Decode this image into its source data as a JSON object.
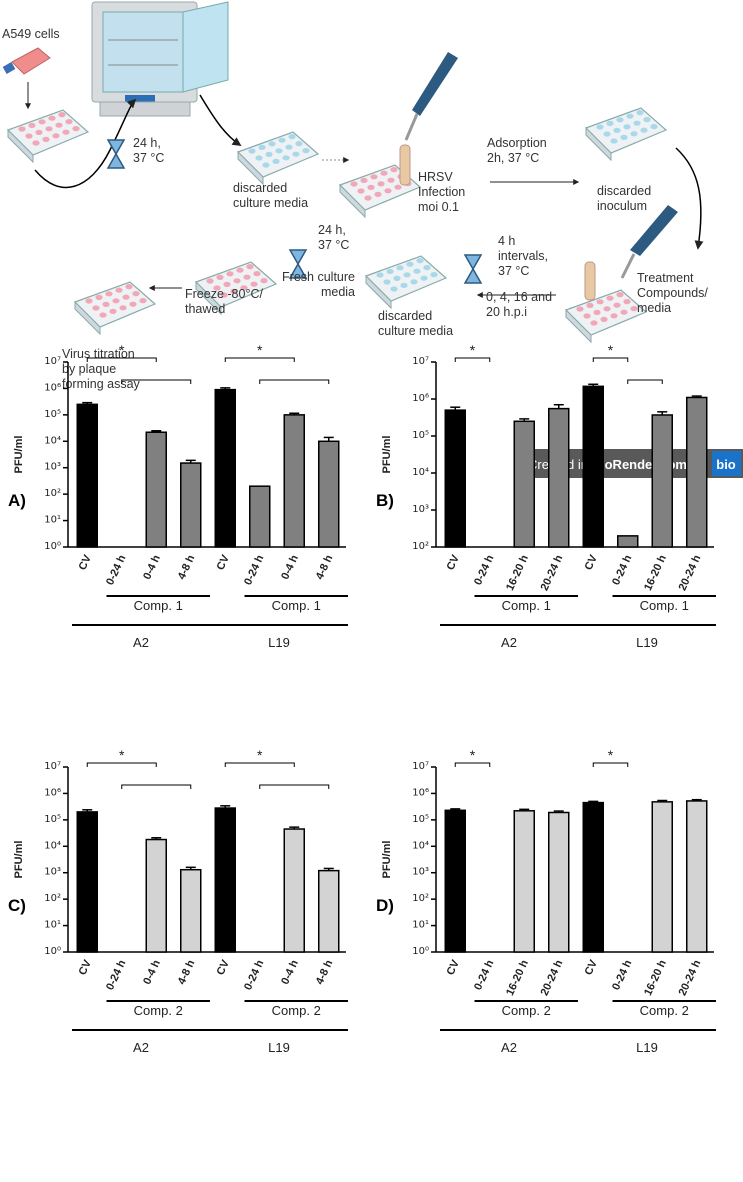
{
  "diagram": {
    "labels": [
      {
        "lines": [
          "A549 cells"
        ]
      },
      {
        "lines": [
          "24 h,",
          "37 °C"
        ]
      },
      {
        "lines": [
          "discarded",
          "culture media"
        ]
      },
      {
        "lines": [
          "HRSV",
          "Infection",
          "moi 0.1"
        ]
      },
      {
        "lines": [
          "Adsorption",
          "2h, 37 °C"
        ]
      },
      {
        "lines": [
          "discarded",
          "inoculum"
        ]
      },
      {
        "lines": [
          "Treatment",
          "Compounds/",
          "media"
        ]
      },
      {
        "lines": [
          "4 h",
          "intervals,",
          "37 °C"
        ]
      },
      {
        "lines": [
          "0, 4, 16 and",
          "20 h.p.i"
        ]
      },
      {
        "lines": [
          "discarded",
          "culture media"
        ]
      },
      {
        "lines": [
          "24 h,",
          "37 °C"
        ]
      },
      {
        "lines": [
          "Fresh culture",
          "media"
        ]
      },
      {
        "lines": [
          "Freeze -80°C/",
          "thawed"
        ]
      },
      {
        "lines": [
          "Virus titration",
          "by plaque",
          "forming assay"
        ]
      }
    ],
    "badge": {
      "text": "Created in",
      "brand": "BioRender.com",
      "logo": "bio"
    }
  },
  "chart_data": [
    {
      "type": "bar",
      "title": "A)",
      "y_label": "PFU/ml",
      "log_scale": true,
      "ylim": [
        1,
        10000000
      ],
      "yticks": [
        {
          "value": 1,
          "label": "10⁰"
        },
        {
          "value": 10,
          "label": "10¹"
        },
        {
          "value": 100,
          "label": "10²"
        },
        {
          "value": 1000,
          "label": "10³"
        },
        {
          "value": 10000,
          "label": "10⁴"
        },
        {
          "value": 100000,
          "label": "10⁵"
        },
        {
          "value": 1000000,
          "label": "10⁶"
        },
        {
          "value": 10000000,
          "label": "10⁷"
        }
      ],
      "categories": [
        "CV",
        "0-24 h",
        "0-4 h",
        "4-8 h",
        "CV",
        "0-24 h",
        "0-4 h",
        "4-8 h"
      ],
      "values": [
        250000,
        null,
        22000,
        1500,
        900000,
        200,
        100000,
        10000
      ],
      "errors": [
        40000,
        null,
        3000,
        400,
        150000,
        null,
        15000,
        4000
      ],
      "colors": [
        "#000000",
        "#808080",
        "#808080",
        "#808080",
        "#000000",
        "#808080",
        "#808080",
        "#808080"
      ],
      "subgroups": [
        {
          "label": "Comp. 1",
          "from": 1,
          "to": 3
        },
        {
          "label": "Comp. 1",
          "from": 5,
          "to": 7
        }
      ],
      "groups": [
        {
          "label": "A2",
          "from": 0,
          "to": 3
        },
        {
          "label": "L19",
          "from": 4,
          "to": 7
        }
      ],
      "brackets": [
        {
          "from": 0,
          "to": 2,
          "label": "*"
        },
        {
          "from": 1,
          "to": 3
        },
        {
          "from": 4,
          "to": 6,
          "label": "*"
        },
        {
          "from": 5,
          "to": 7
        }
      ]
    },
    {
      "type": "bar",
      "title": "B)",
      "y_label": "PFU/ml",
      "log_scale": true,
      "ylim": [
        100,
        10000000
      ],
      "yticks": [
        {
          "value": 100,
          "label": "10²"
        },
        {
          "value": 1000,
          "label": "10³"
        },
        {
          "value": 10000,
          "label": "10⁴"
        },
        {
          "value": 100000,
          "label": "10⁵"
        },
        {
          "value": 1000000,
          "label": "10⁶"
        },
        {
          "value": 10000000,
          "label": "10⁷"
        }
      ],
      "categories": [
        "CV",
        "0-24 h",
        "16-20 h",
        "20-24 h",
        "CV",
        "0-24 h",
        "16-20 h",
        "20-24 h"
      ],
      "values": [
        500000,
        null,
        250000,
        550000,
        2200000,
        200,
        370000,
        1100000
      ],
      "errors": [
        100000,
        null,
        40000,
        150000,
        300000,
        null,
        80000,
        100000
      ],
      "colors": [
        "#000000",
        "#808080",
        "#808080",
        "#808080",
        "#000000",
        "#808080",
        "#808080",
        "#808080"
      ],
      "subgroups": [
        {
          "label": "Comp. 1",
          "from": 1,
          "to": 3
        },
        {
          "label": "Comp. 1",
          "from": 5,
          "to": 7
        }
      ],
      "groups": [
        {
          "label": "A2",
          "from": 0,
          "to": 3
        },
        {
          "label": "L19",
          "from": 4,
          "to": 7
        }
      ],
      "brackets": [
        {
          "from": 0,
          "to": 1,
          "label": "*"
        },
        {
          "from": 4,
          "to": 5,
          "label": "*"
        },
        {
          "from": 5,
          "to": 6
        }
      ]
    },
    {
      "type": "bar",
      "title": "C)",
      "y_label": "PFU/ml",
      "log_scale": true,
      "ylim": [
        1,
        10000000
      ],
      "yticks": [
        {
          "value": 1,
          "label": "10⁰"
        },
        {
          "value": 10,
          "label": "10¹"
        },
        {
          "value": 100,
          "label": "10²"
        },
        {
          "value": 1000,
          "label": "10³"
        },
        {
          "value": 10000,
          "label": "10⁴"
        },
        {
          "value": 100000,
          "label": "10⁵"
        },
        {
          "value": 1000000,
          "label": "10⁶"
        },
        {
          "value": 10000000,
          "label": "10⁷"
        }
      ],
      "categories": [
        "CV",
        "0-24 h",
        "0-4 h",
        "4-8 h",
        "CV",
        "0-24 h",
        "0-4 h",
        "4-8 h"
      ],
      "values": [
        200000,
        null,
        18000,
        1300,
        280000,
        null,
        45000,
        1200
      ],
      "errors": [
        40000,
        null,
        3000,
        300,
        60000,
        null,
        8000,
        250
      ],
      "colors": [
        "#000000",
        "#d3d3d3",
        "#d3d3d3",
        "#d3d3d3",
        "#000000",
        "#d3d3d3",
        "#d3d3d3",
        "#d3d3d3"
      ],
      "subgroups": [
        {
          "label": "Comp. 2",
          "from": 1,
          "to": 3
        },
        {
          "label": "Comp. 2",
          "from": 5,
          "to": 7
        }
      ],
      "groups": [
        {
          "label": "A2",
          "from": 0,
          "to": 3
        },
        {
          "label": "L19",
          "from": 4,
          "to": 7
        }
      ],
      "brackets": [
        {
          "from": 0,
          "to": 2,
          "label": "*"
        },
        {
          "from": 1,
          "to": 3
        },
        {
          "from": 4,
          "to": 6,
          "label": "*"
        },
        {
          "from": 5,
          "to": 7
        }
      ]
    },
    {
      "type": "bar",
      "title": "D)",
      "y_label": "PFU/ml",
      "log_scale": true,
      "ylim": [
        1,
        10000000
      ],
      "yticks": [
        {
          "value": 1,
          "label": "10⁰"
        },
        {
          "value": 10,
          "label": "10¹"
        },
        {
          "value": 100,
          "label": "10²"
        },
        {
          "value": 1000,
          "label": "10³"
        },
        {
          "value": 10000,
          "label": "10⁴"
        },
        {
          "value": 100000,
          "label": "10⁵"
        },
        {
          "value": 1000000,
          "label": "10⁶"
        },
        {
          "value": 10000000,
          "label": "10⁷"
        }
      ],
      "categories": [
        "CV",
        "0-24 h",
        "16-20 h",
        "20-24 h",
        "CV",
        "0-24 h",
        "16-20 h",
        "20-24 h"
      ],
      "values": [
        230000,
        null,
        220000,
        190000,
        450000,
        null,
        480000,
        520000
      ],
      "errors": [
        30000,
        null,
        30000,
        25000,
        50000,
        null,
        60000,
        60000
      ],
      "colors": [
        "#000000",
        "#d3d3d3",
        "#d3d3d3",
        "#d3d3d3",
        "#000000",
        "#d3d3d3",
        "#d3d3d3",
        "#d3d3d3"
      ],
      "subgroups": [
        {
          "label": "Comp. 2",
          "from": 1,
          "to": 3
        },
        {
          "label": "Comp. 2",
          "from": 5,
          "to": 7
        }
      ],
      "groups": [
        {
          "label": "A2",
          "from": 0,
          "to": 3
        },
        {
          "label": "L19",
          "from": 4,
          "to": 7
        }
      ],
      "brackets": [
        {
          "from": 0,
          "to": 1,
          "label": "*"
        },
        {
          "from": 4,
          "to": 5,
          "label": "*"
        }
      ]
    }
  ]
}
